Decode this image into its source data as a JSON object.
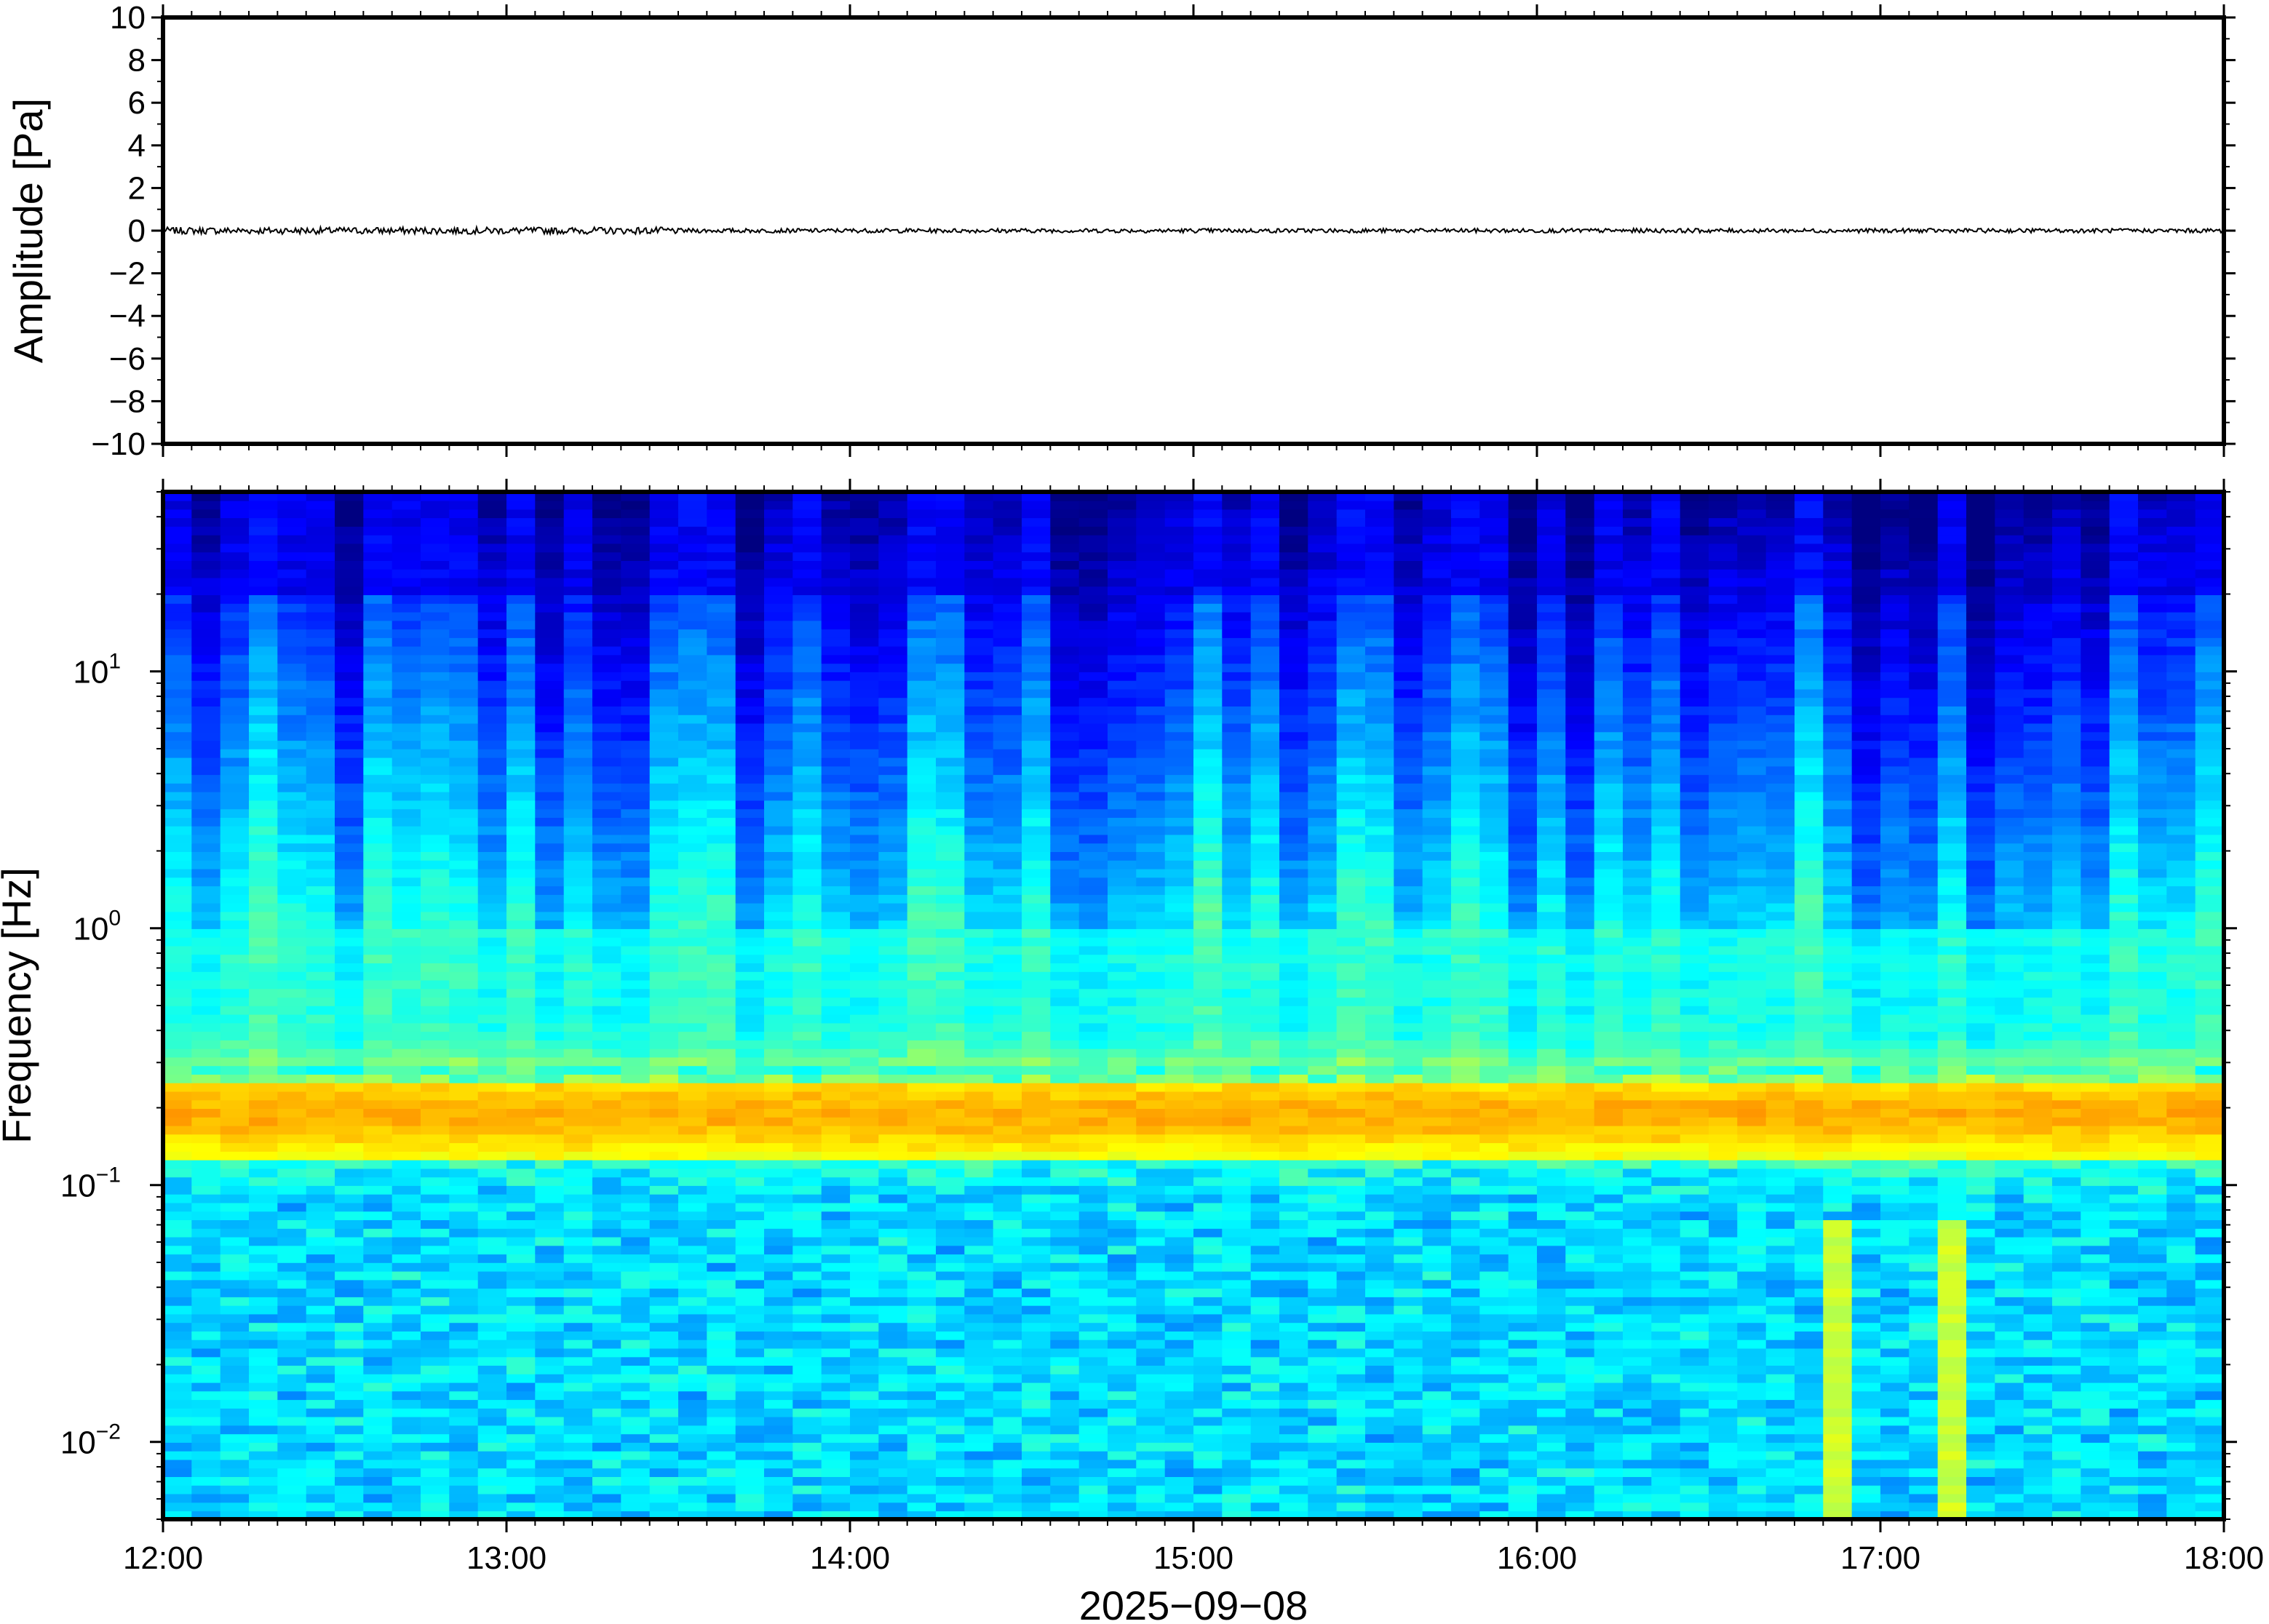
{
  "chart_data": [
    {
      "type": "line",
      "panel": "waveform",
      "ylabel": "Amplitude [Pa]",
      "ylim": [
        -10,
        10
      ],
      "yticks": [
        10,
        8,
        6,
        4,
        2,
        0,
        -2,
        -4,
        -6,
        -8,
        -10
      ],
      "ytick_labels": [
        "10",
        "8",
        "6",
        "4",
        "2",
        "0",
        "−2",
        "−4",
        "−6",
        "−8",
        "−10"
      ],
      "xlim": [
        "12:00",
        "18:00"
      ],
      "series": [
        {
          "values_summary": "trace near 0 Pa with noise amplitude about ±0.1 Pa throughout",
          "baseline": 0,
          "noise_amplitude": 0.1
        }
      ],
      "line_color": "#000000",
      "grid": false
    },
    {
      "type": "heatmap",
      "panel": "spectrogram",
      "ylabel": "Frequency [Hz]",
      "yscale": "log",
      "ylim": [
        0.005,
        50
      ],
      "yticks": [
        {
          "base": "10",
          "exp": "1",
          "value": 10
        },
        {
          "base": "10",
          "exp": "0",
          "value": 1
        },
        {
          "base": "10",
          "exp": "−1",
          "value": 0.1
        },
        {
          "base": "10",
          "exp": "−2",
          "value": 0.01
        }
      ],
      "xlabel": "2025−09−08",
      "xticks": [
        "12:00",
        "13:00",
        "14:00",
        "15:00",
        "16:00",
        "17:00",
        "18:00"
      ],
      "colormap": "jet",
      "features": {
        "microseism_peak_hz": 0.19,
        "high_freq_energy": "variable vertical bands of elevated energy above 1 Hz",
        "low_freq": "mostly cyan to light blue below 0.1 Hz with occasional yellow columns near 16:50 and 17:10"
      },
      "grid": false
    }
  ]
}
